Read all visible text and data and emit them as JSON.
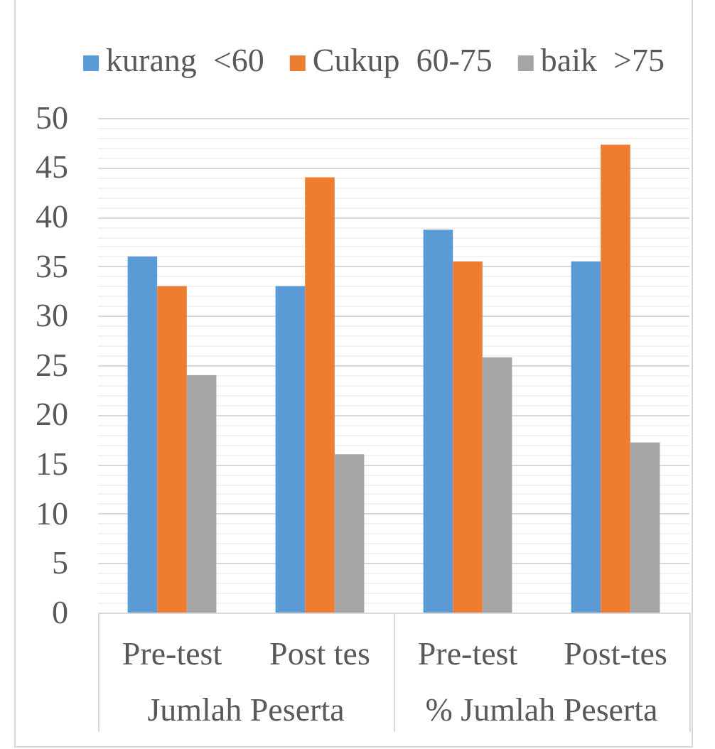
{
  "chart_data": {
    "type": "bar",
    "categories": [
      "Pre-test",
      "Post tes",
      "Pre-test",
      "Post-tes"
    ],
    "series": [
      {
        "name": "kurang  <60",
        "color": "#5b9bd5",
        "values": [
          36,
          33,
          38.7,
          35.5
        ]
      },
      {
        "name": "Cukup  60-75",
        "color": "#ed7d31",
        "values": [
          33,
          44,
          35.5,
          47.3
        ]
      },
      {
        "name": "baik  >75",
        "color": "#a5a5a5",
        "values": [
          24,
          16,
          25.8,
          17.2
        ]
      }
    ],
    "ylim": [
      0,
      50
    ],
    "yticks": [
      0,
      {
        "value": 1,
        "label": null
      },
      {
        "value": 2,
        "label": null
      },
      {
        "value": 3,
        "label": null
      },
      {
        "value": 4,
        "label": null
      },
      5,
      {
        "value": 6,
        "label": null
      },
      {
        "value": 7,
        "label": null
      },
      {
        "value": 8,
        "label": null
      },
      {
        "value": 9,
        "label": null
      },
      10,
      {
        "value": 11,
        "label": null
      },
      {
        "value": 12,
        "label": null
      },
      {
        "value": 13,
        "label": null
      },
      {
        "value": 14,
        "label": null
      },
      15,
      {
        "value": 16,
        "label": null
      },
      {
        "value": 17,
        "label": null
      },
      {
        "value": 18,
        "label": null
      },
      {
        "value": 19,
        "label": null
      },
      20,
      {
        "value": 21,
        "label": null
      },
      {
        "value": 22,
        "label": null
      },
      {
        "value": 23,
        "label": null
      },
      {
        "value": 24,
        "label": null
      },
      25,
      {
        "value": 26,
        "label": null
      },
      {
        "value": 27,
        "label": null
      },
      {
        "value": 28,
        "label": null
      },
      {
        "value": 29,
        "label": null
      },
      30,
      {
        "value": 31,
        "label": null
      },
      {
        "value": 32,
        "label": null
      },
      {
        "value": 33,
        "label": null
      },
      {
        "value": 34,
        "label": null
      },
      35,
      {
        "value": 36,
        "label": null
      },
      {
        "value": 37,
        "label": null
      },
      {
        "value": 38,
        "label": null
      },
      {
        "value": 39,
        "label": null
      },
      40,
      {
        "value": 41,
        "label": null
      },
      {
        "value": 42,
        "label": null
      },
      {
        "value": 43,
        "label": null
      },
      {
        "value": 44,
        "label": null
      },
      45,
      {
        "value": 46,
        "label": null
      },
      {
        "value": 47,
        "label": null
      },
      {
        "value": 48,
        "label": null
      },
      {
        "value": 49,
        "label": null
      },
      50
    ],
    "grid": "y",
    "legend": "top",
    "annotations": [
      "Jumlah Peserta",
      "% Jumlah Peserta"
    ]
  }
}
